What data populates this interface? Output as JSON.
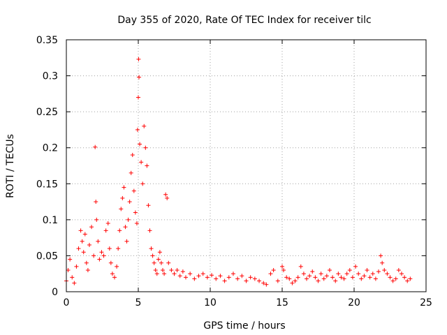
{
  "chart_data": {
    "type": "scatter",
    "title": "Day 355 of 2020, Rate Of TEC Index for receiver tilc",
    "xlabel": "GPS time / hours",
    "ylabel": "ROTI / TECUs",
    "xlim": [
      0,
      25
    ],
    "ylim": [
      0,
      0.35
    ],
    "xticks": [
      0,
      5,
      10,
      15,
      20,
      25
    ],
    "yticks": [
      0,
      0.05,
      0.1,
      0.15,
      0.2,
      0.25,
      0.3,
      0.35
    ],
    "xtick_labels": [
      "0",
      "5",
      "10",
      "15",
      "20",
      "25"
    ],
    "ytick_labels": [
      "0",
      "0.05",
      "0.1",
      "0.15",
      "0.2",
      "0.25",
      "0.3",
      "0.35"
    ],
    "grid": true,
    "marker": "+",
    "series": [
      {
        "name": "ROTI",
        "color": "#ff0000",
        "x": [
          0.0,
          0.12,
          0.25,
          0.4,
          0.55,
          0.7,
          0.85,
          1.0,
          1.1,
          1.2,
          1.3,
          1.4,
          1.5,
          1.6,
          1.75,
          1.9,
          2.0,
          2.05,
          2.1,
          2.2,
          2.3,
          2.45,
          2.6,
          2.75,
          2.9,
          3.0,
          3.1,
          3.2,
          3.35,
          3.5,
          3.6,
          3.7,
          3.8,
          3.9,
          4.0,
          4.1,
          4.2,
          4.3,
          4.4,
          4.5,
          4.6,
          4.7,
          4.8,
          4.9,
          4.95,
          5.0,
          5.02,
          5.05,
          5.1,
          5.2,
          5.3,
          5.4,
          5.5,
          5.6,
          5.7,
          5.8,
          5.9,
          6.0,
          6.1,
          6.2,
          6.3,
          6.4,
          6.5,
          6.6,
          6.7,
          6.8,
          6.9,
          7.0,
          7.1,
          7.3,
          7.5,
          7.7,
          7.9,
          8.1,
          8.3,
          8.6,
          8.9,
          9.2,
          9.5,
          9.8,
          10.1,
          10.4,
          10.7,
          11.0,
          11.3,
          11.6,
          11.9,
          12.2,
          12.5,
          12.8,
          13.1,
          13.4,
          13.7,
          13.9,
          14.2,
          14.4,
          14.7,
          15.0,
          15.1,
          15.3,
          15.5,
          15.7,
          15.9,
          16.1,
          16.3,
          16.5,
          16.7,
          16.9,
          17.1,
          17.3,
          17.5,
          17.7,
          17.9,
          18.1,
          18.3,
          18.5,
          18.7,
          18.9,
          19.1,
          19.3,
          19.5,
          19.7,
          19.9,
          20.1,
          20.3,
          20.5,
          20.7,
          20.9,
          21.1,
          21.3,
          21.5,
          21.7,
          21.85,
          21.95,
          22.1,
          22.3,
          22.5,
          22.7,
          22.9,
          23.1,
          23.3,
          23.5,
          23.7,
          23.9
        ],
        "y": [
          0.015,
          0.03,
          0.045,
          0.02,
          0.012,
          0.035,
          0.06,
          0.085,
          0.07,
          0.055,
          0.08,
          0.04,
          0.03,
          0.065,
          0.09,
          0.05,
          0.201,
          0.125,
          0.1,
          0.07,
          0.045,
          0.055,
          0.05,
          0.085,
          0.095,
          0.06,
          0.04,
          0.025,
          0.02,
          0.035,
          0.06,
          0.085,
          0.115,
          0.13,
          0.145,
          0.09,
          0.07,
          0.1,
          0.125,
          0.165,
          0.19,
          0.14,
          0.11,
          0.095,
          0.225,
          0.27,
          0.323,
          0.298,
          0.205,
          0.18,
          0.15,
          0.23,
          0.2,
          0.175,
          0.12,
          0.085,
          0.06,
          0.05,
          0.04,
          0.03,
          0.025,
          0.045,
          0.055,
          0.04,
          0.03,
          0.025,
          0.135,
          0.13,
          0.04,
          0.03,
          0.025,
          0.03,
          0.022,
          0.028,
          0.02,
          0.025,
          0.018,
          0.022,
          0.025,
          0.02,
          0.023,
          0.018,
          0.022,
          0.015,
          0.02,
          0.025,
          0.018,
          0.022,
          0.015,
          0.02,
          0.018,
          0.015,
          0.012,
          0.01,
          0.025,
          0.03,
          0.015,
          0.035,
          0.03,
          0.02,
          0.018,
          0.012,
          0.015,
          0.02,
          0.035,
          0.025,
          0.018,
          0.022,
          0.028,
          0.02,
          0.015,
          0.025,
          0.018,
          0.022,
          0.03,
          0.02,
          0.015,
          0.025,
          0.02,
          0.018,
          0.025,
          0.03,
          0.02,
          0.035,
          0.025,
          0.018,
          0.022,
          0.03,
          0.02,
          0.025,
          0.018,
          0.028,
          0.05,
          0.04,
          0.03,
          0.025,
          0.02,
          0.015,
          0.018,
          0.03,
          0.025,
          0.02,
          0.015,
          0.018
        ]
      }
    ]
  }
}
